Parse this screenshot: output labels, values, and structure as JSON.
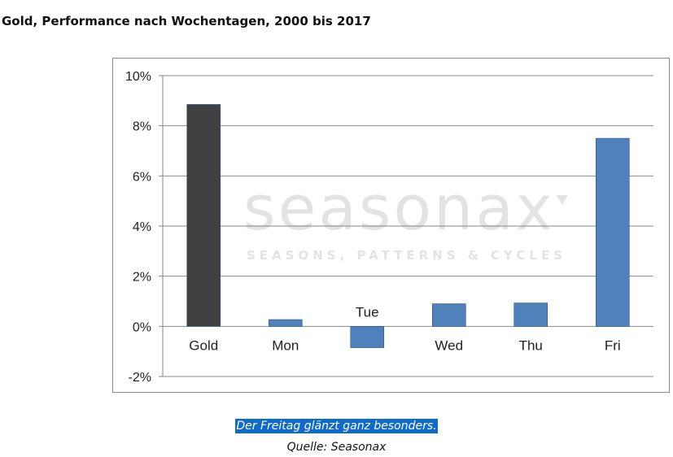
{
  "headline": "Gold, Performance nach Wochentagen, 2000 bis 2017",
  "watermark": {
    "brand": "seasonax",
    "tagline": "SEASONS, PATTERNS & CYCLES"
  },
  "caption": {
    "text": "Der Freitag glänzt ganz besonders.",
    "source": "Quelle: Seasonax"
  },
  "chart_data": {
    "type": "bar",
    "categories": [
      "Gold",
      "Mon",
      "Tue",
      "Wed",
      "Thu",
      "Fri"
    ],
    "values": [
      8.85,
      0.27,
      -0.85,
      0.9,
      0.93,
      7.5
    ],
    "colors": [
      "#404040",
      "#4f81bd",
      "#4f81bd",
      "#4f81bd",
      "#4f81bd",
      "#4f81bd"
    ],
    "yticks": [
      "10%",
      "8%",
      "6%",
      "4%",
      "2%",
      "0%",
      "-2%"
    ],
    "ytick_values": [
      10,
      8,
      6,
      4,
      2,
      0,
      -2
    ],
    "ylim": [
      -2,
      10
    ],
    "grid": true,
    "title": "",
    "xlabel": "",
    "ylabel": ""
  }
}
